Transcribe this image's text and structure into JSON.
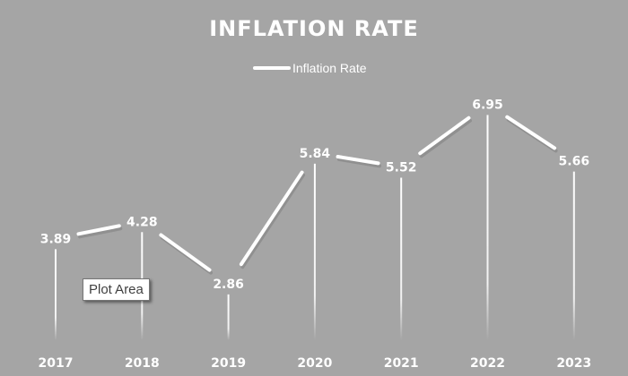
{
  "chart_data": {
    "type": "line",
    "title": "INFLATION RATE",
    "categories": [
      "2017",
      "2018",
      "2019",
      "2020",
      "2021",
      "2022",
      "2023"
    ],
    "series": [
      {
        "name": "Inflation Rate",
        "values": [
          3.89,
          4.28,
          2.86,
          5.84,
          5.52,
          6.95,
          5.66
        ]
      }
    ],
    "data_labels": true,
    "drop_lines": true,
    "legend_position": "top",
    "grid": false,
    "xlabel": "",
    "ylabel": ""
  },
  "tooltip": {
    "label": "Plot Area"
  },
  "colors": {
    "background": "#a5a5a5",
    "line": "#ffffff",
    "text": "#ffffff"
  }
}
